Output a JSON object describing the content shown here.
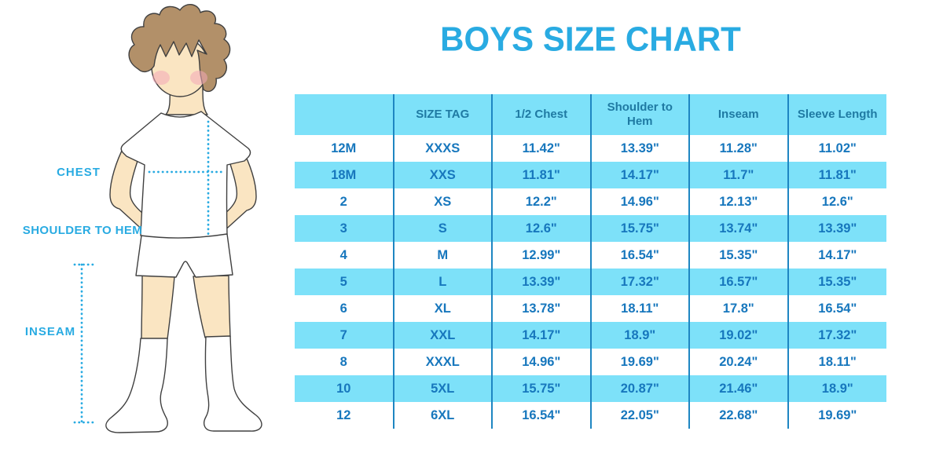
{
  "title": "BOYS SIZE CHART",
  "figure_labels": {
    "chest": "CHEST",
    "shoulder_to_hem": "SHOULDER TO HEM",
    "inseam": "INSEAM"
  },
  "colors": {
    "accent_cyan": "#29ABE2",
    "table_fill_cyan": "#7DE1F9",
    "table_divider_blue": "#1E86C2",
    "cell_text_blue": "#1777BD",
    "header_text_blue": "#1F7AA3",
    "skin": "#FAE5C2",
    "hair_brown": "#B29069",
    "cheek_pink": "#F3A8B8",
    "outline": "#404040"
  },
  "chart_data": {
    "type": "table",
    "title": "BOYS SIZE CHART",
    "units": "inches",
    "columns": [
      "",
      "SIZE TAG",
      "1/2 Chest",
      "Shoulder to Hem",
      "Inseam",
      "Sleeve Length"
    ],
    "rows": [
      [
        "12M",
        "XXXS",
        "11.42\"",
        "13.39\"",
        "11.28\"",
        "11.02\""
      ],
      [
        "18M",
        "XXS",
        "11.81\"",
        "14.17\"",
        "11.7\"",
        "11.81\""
      ],
      [
        "2",
        "XS",
        "12.2\"",
        "14.96\"",
        "12.13\"",
        "12.6\""
      ],
      [
        "3",
        "S",
        "12.6\"",
        "15.75\"",
        "13.74\"",
        "13.39\""
      ],
      [
        "4",
        "M",
        "12.99\"",
        "16.54\"",
        "15.35\"",
        "14.17\""
      ],
      [
        "5",
        "L",
        "13.39\"",
        "17.32\"",
        "16.57\"",
        "15.35\""
      ],
      [
        "6",
        "XL",
        "13.78\"",
        "18.11\"",
        "17.8\"",
        "16.54\""
      ],
      [
        "7",
        "XXL",
        "14.17\"",
        "18.9\"",
        "19.02\"",
        "17.32\""
      ],
      [
        "8",
        "XXXL",
        "14.96\"",
        "19.69\"",
        "20.24\"",
        "18.11\""
      ],
      [
        "10",
        "5XL",
        "15.75\"",
        "20.87\"",
        "21.46\"",
        "18.9\""
      ],
      [
        "12",
        "6XL",
        "16.54\"",
        "22.05\"",
        "22.68\"",
        "19.69\""
      ]
    ],
    "measurement_labels": [
      "CHEST",
      "SHOULDER TO HEM",
      "INSEAM"
    ],
    "row_striping": "white / light-cyan alternating, starting white"
  }
}
